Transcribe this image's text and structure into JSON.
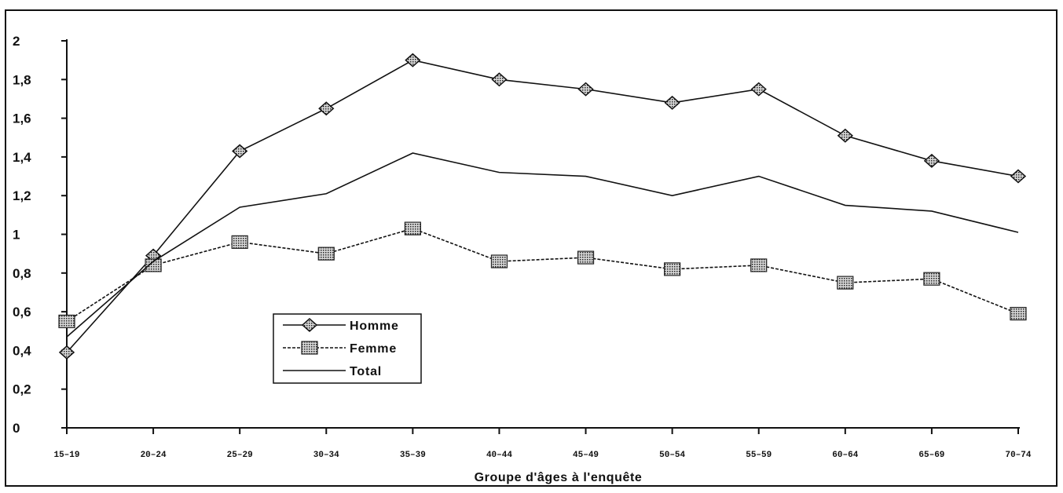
{
  "chart_data": {
    "type": "line",
    "categories": [
      "15–19",
      "20–24",
      "25–29",
      "30–34",
      "35–39",
      "40–44",
      "45–49",
      "50–54",
      "55–59",
      "60–64",
      "65–69",
      "70–74"
    ],
    "series": [
      {
        "name": "Homme",
        "marker": "diamond",
        "style": "solid",
        "values": [
          0.39,
          0.89,
          1.43,
          1.65,
          1.9,
          1.8,
          1.75,
          1.68,
          1.75,
          1.51,
          1.38,
          1.3
        ]
      },
      {
        "name": "Femme",
        "marker": "square",
        "style": "dashed",
        "values": [
          0.55,
          0.84,
          0.96,
          0.9,
          1.03,
          0.86,
          0.88,
          0.82,
          0.84,
          0.75,
          0.77,
          0.59
        ]
      },
      {
        "name": "Total",
        "marker": "none",
        "style": "solid",
        "values": [
          0.47,
          0.86,
          1.14,
          1.21,
          1.42,
          1.32,
          1.3,
          1.2,
          1.3,
          1.15,
          1.12,
          1.01
        ]
      }
    ],
    "title": "",
    "xlabel": "Groupe d'âges à l'enquête",
    "ylabel": "",
    "ylim": [
      0,
      2
    ],
    "yticks": [
      "0",
      "0,2",
      "0,4",
      "0,6",
      "0,8",
      "1",
      "1,2",
      "1,4",
      "1,6",
      "1,8",
      "2"
    ],
    "grid": false,
    "legend_position": "lower-left",
    "colors": {
      "line": "#111111",
      "marker": "#333333"
    }
  }
}
